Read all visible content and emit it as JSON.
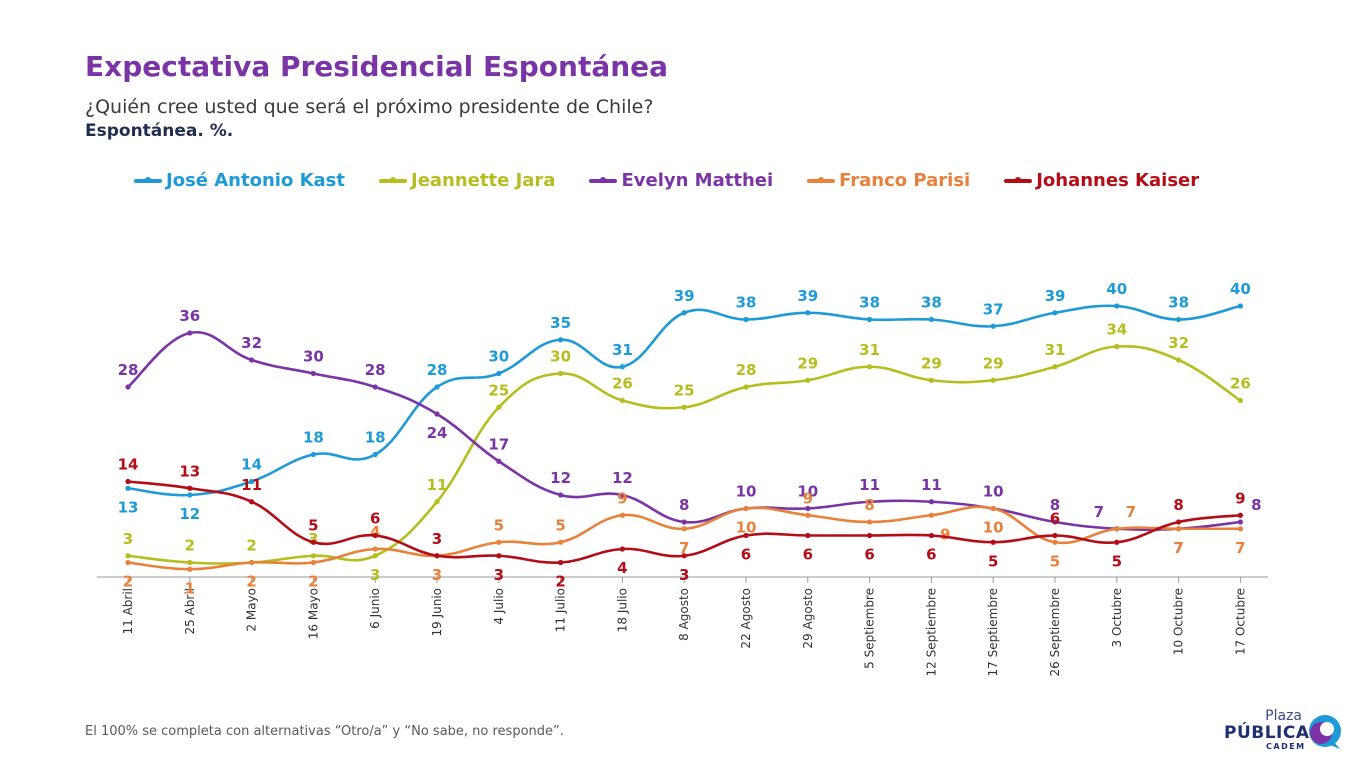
{
  "header": {
    "title": "Expectativa Presidencial Espontánea",
    "subtitle": "¿Quién cree usted que será el próximo presidente de Chile?",
    "subtitle2": "Espontánea. %."
  },
  "footer": {
    "note": "El 100% se completa con alternativas “Otro/a” y “No sabe, no responde”."
  },
  "logo": {
    "line1": "Plaza",
    "line2": "PÚBLICA",
    "line3": "CADEM"
  },
  "chart_data": {
    "type": "line",
    "categories": [
      "11 Abril",
      "25 Abril",
      "2 Mayo",
      "16 Mayo",
      "6 Junio",
      "19 Junio",
      "4 Julio",
      "11 Julio",
      "18 Julio",
      "8 Agosto",
      "22 Agosto",
      "29 Agosto",
      "5 Septiembre",
      "12 Septiembre",
      "17 Septiembre",
      "26 Septiembre",
      "3 Octubre",
      "10 Octubre",
      "17 Octubre"
    ],
    "ylim": [
      0,
      45
    ],
    "grid": false,
    "legend": "top",
    "series": [
      {
        "name": "José Antonio Kast",
        "color": "#1e9bd7",
        "values": [
          13,
          12,
          14,
          18,
          18,
          28,
          30,
          35,
          31,
          39,
          38,
          39,
          38,
          38,
          37,
          39,
          40,
          38,
          40
        ]
      },
      {
        "name": "Jeannette Jara",
        "color": "#b5be1e",
        "values": [
          3,
          2,
          2,
          3,
          3,
          11,
          25,
          30,
          26,
          25,
          28,
          29,
          31,
          29,
          29,
          31,
          34,
          32,
          26
        ]
      },
      {
        "name": "Evelyn Matthei",
        "color": "#7b34a5",
        "values": [
          28,
          36,
          32,
          30,
          28,
          24,
          17,
          12,
          12,
          8,
          10,
          10,
          11,
          11,
          10,
          8,
          7,
          7,
          8
        ]
      },
      {
        "name": "Franco Parisi",
        "color": "#e8823a",
        "values": [
          2,
          1,
          2,
          2,
          4,
          3,
          5,
          5,
          9,
          7,
          10,
          9,
          8,
          9,
          10,
          5,
          7,
          7,
          7
        ]
      },
      {
        "name": "Johannes Kaiser",
        "color": "#b30d17",
        "values": [
          14,
          13,
          11,
          5,
          6,
          3,
          3,
          2,
          4,
          3,
          6,
          6,
          6,
          6,
          5,
          6,
          5,
          8,
          9
        ]
      }
    ]
  }
}
